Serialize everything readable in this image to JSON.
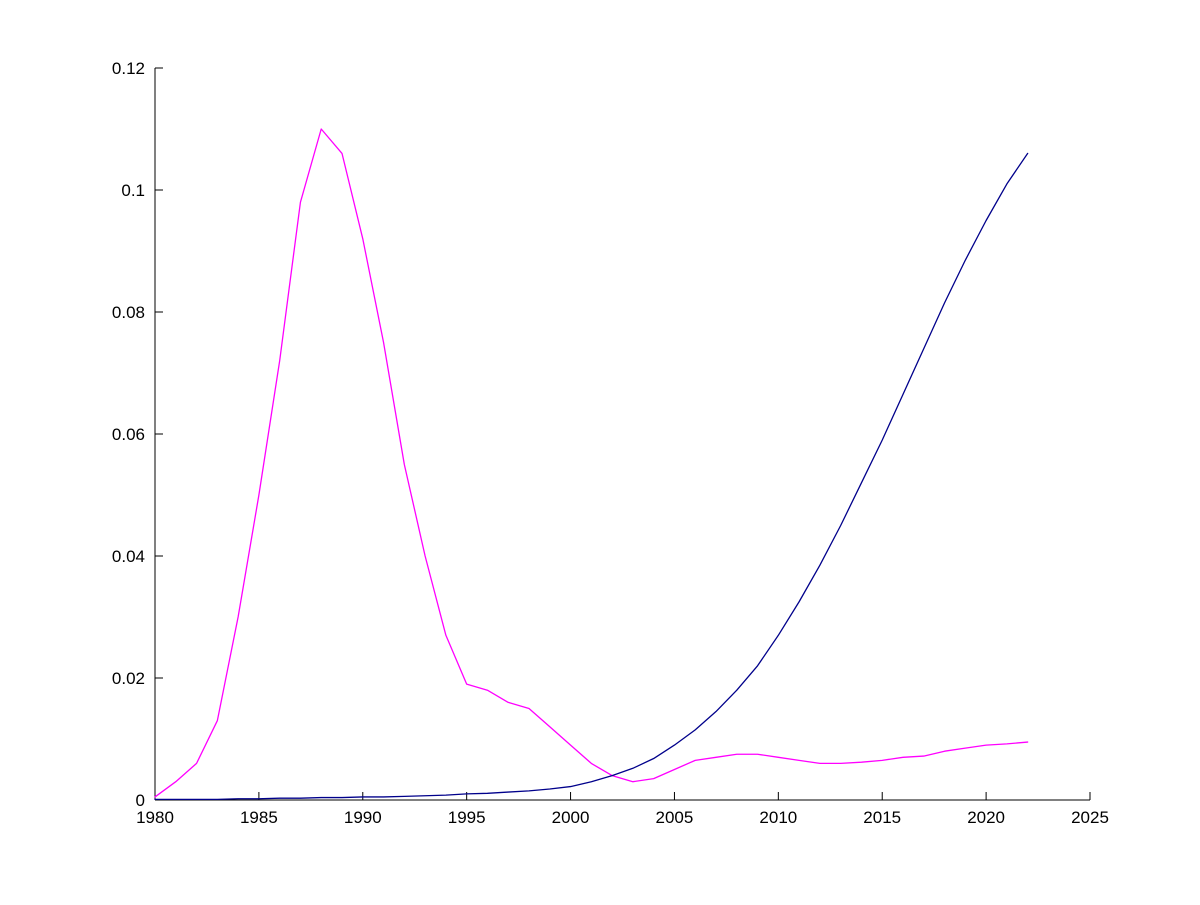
{
  "chart_data": {
    "type": "line",
    "title": "",
    "xlabel": "",
    "ylabel": "",
    "xlim": [
      1980,
      2025
    ],
    "ylim": [
      0,
      0.12
    ],
    "x_ticks": [
      1980,
      1985,
      1990,
      1995,
      2000,
      2005,
      2010,
      2015,
      2020,
      2025
    ],
    "x_tick_labels": [
      "1980",
      "1985",
      "1990",
      "1995",
      "2000",
      "2005",
      "2010",
      "2015",
      "2020",
      "2025"
    ],
    "y_ticks": [
      0,
      0.02,
      0.04,
      0.06,
      0.08,
      0.1,
      0.12
    ],
    "y_tick_labels": [
      "0",
      "0.02",
      "0.04",
      "0.06",
      "0.08",
      "0.1",
      "0.12"
    ],
    "grid": false,
    "legend": "none",
    "axis_color": "#000000",
    "background_color": "#ffffff",
    "series": [
      {
        "name": "magenta-series",
        "color": "#ff00ff",
        "x": [
          1980,
          1981,
          1982,
          1983,
          1984,
          1985,
          1986,
          1987,
          1988,
          1989,
          1990,
          1991,
          1992,
          1993,
          1994,
          1995,
          1996,
          1997,
          1998,
          1999,
          2000,
          2001,
          2002,
          2003,
          2004,
          2005,
          2006,
          2007,
          2008,
          2009,
          2010,
          2011,
          2012,
          2013,
          2014,
          2015,
          2016,
          2017,
          2018,
          2019,
          2020,
          2021,
          2022
        ],
        "y": [
          0.0005,
          0.003,
          0.006,
          0.013,
          0.03,
          0.05,
          0.072,
          0.098,
          0.11,
          0.106,
          0.092,
          0.075,
          0.055,
          0.04,
          0.027,
          0.019,
          0.018,
          0.016,
          0.015,
          0.012,
          0.009,
          0.006,
          0.004,
          0.003,
          0.0035,
          0.005,
          0.0065,
          0.007,
          0.0075,
          0.0075,
          0.007,
          0.0065,
          0.006,
          0.006,
          0.0062,
          0.0065,
          0.007,
          0.0072,
          0.008,
          0.0085,
          0.009,
          0.0092,
          0.0095
        ]
      },
      {
        "name": "dark-blue-series",
        "color": "#00008b",
        "x": [
          1980,
          1981,
          1982,
          1983,
          1984,
          1985,
          1986,
          1987,
          1988,
          1989,
          1990,
          1991,
          1992,
          1993,
          1994,
          1995,
          1996,
          1997,
          1998,
          1999,
          2000,
          2001,
          2002,
          2003,
          2004,
          2005,
          2006,
          2007,
          2008,
          2009,
          2010,
          2011,
          2012,
          2013,
          2014,
          2015,
          2016,
          2017,
          2018,
          2019,
          2020,
          2021,
          2022
        ],
        "y": [
          0.0001,
          0.0001,
          0.0001,
          0.0001,
          0.0002,
          0.0002,
          0.0003,
          0.0003,
          0.0004,
          0.0004,
          0.0005,
          0.0005,
          0.0006,
          0.0007,
          0.0008,
          0.001,
          0.0011,
          0.0013,
          0.0015,
          0.0018,
          0.0022,
          0.003,
          0.004,
          0.0052,
          0.0068,
          0.009,
          0.0115,
          0.0145,
          0.018,
          0.022,
          0.027,
          0.0325,
          0.0385,
          0.045,
          0.052,
          0.059,
          0.0665,
          0.074,
          0.0815,
          0.0885,
          0.095,
          0.101,
          0.106
        ]
      }
    ]
  }
}
